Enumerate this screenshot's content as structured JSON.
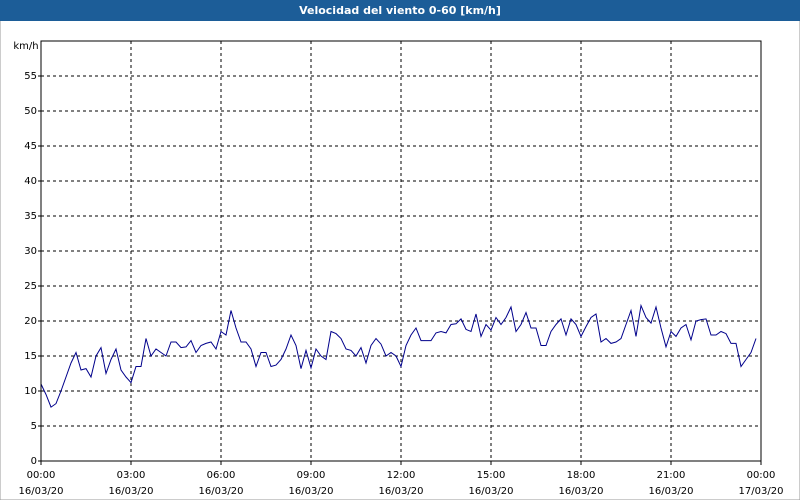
{
  "chart_data": {
    "type": "line",
    "title": "Velocidad del viento 0-60 [km/h]",
    "y_label": "km/h",
    "x": [
      0,
      10,
      20,
      30,
      40,
      50,
      60,
      70,
      80,
      90,
      100,
      110,
      120,
      130,
      140,
      150,
      160,
      170,
      180,
      190,
      200,
      210,
      220,
      230,
      240,
      250,
      260,
      270,
      280,
      290,
      300,
      310,
      320,
      330,
      340,
      350,
      360,
      370,
      380,
      390,
      400,
      410,
      420,
      430,
      440,
      450,
      460,
      470,
      480,
      490,
      500,
      510,
      520,
      530,
      540,
      550,
      560,
      570,
      580,
      590,
      600,
      610,
      620,
      630,
      640,
      650,
      660,
      670,
      680,
      690,
      700,
      710,
      720,
      730,
      740,
      750,
      760,
      770,
      780,
      790,
      800,
      810,
      820,
      830,
      840,
      850,
      860,
      870,
      880,
      890,
      900,
      910,
      920,
      930,
      940,
      950,
      960,
      970,
      980,
      990,
      1000,
      1010,
      1020,
      1030,
      1040,
      1050,
      1060,
      1070,
      1080,
      1090,
      1100,
      1110,
      1120,
      1130,
      1140,
      1150,
      1160,
      1170,
      1180,
      1190,
      1200,
      1210,
      1220,
      1230,
      1240,
      1250,
      1260,
      1270,
      1280,
      1290,
      1300,
      1310,
      1320,
      1330,
      1340,
      1350,
      1360,
      1370,
      1380,
      1390,
      1400,
      1410,
      1420,
      1430
    ],
    "values": [
      11,
      9.5,
      7.7,
      8.2,
      10,
      12,
      14,
      15.5,
      13,
      13.2,
      12,
      15,
      16.2,
      12.5,
      14.5,
      16,
      13,
      12,
      11.2,
      13.5,
      13.5,
      17.5,
      15,
      16,
      15.5,
      15,
      17,
      17,
      16.2,
      16.3,
      17.2,
      15.5,
      16.5,
      16.8,
      17,
      16,
      18.5,
      18,
      21.5,
      19,
      17,
      17,
      16,
      13.5,
      15.5,
      15.5,
      13.5,
      13.7,
      14.5,
      16,
      18,
      16.5,
      13.2,
      15.8,
      13.3,
      16,
      15,
      14.5,
      18.5,
      18.2,
      17.5,
      16,
      15.8,
      15,
      16.2,
      14,
      16.5,
      17.5,
      16.7,
      15,
      15.5,
      15,
      13.5,
      16.5,
      18,
      19,
      17.2,
      17.2,
      17.2,
      18.3,
      18.5,
      18.3,
      19.5,
      19.6,
      20.3,
      18.8,
      18.5,
      21,
      17.8,
      19.5,
      18.7,
      20.5,
      19.5,
      20.5,
      22,
      18.5,
      19.5,
      21.2,
      19,
      19,
      16.5,
      16.5,
      18.5,
      19.5,
      20.3,
      18,
      20.3,
      19.5,
      17.8,
      19.2,
      20.5,
      21,
      17,
      17.5,
      16.8,
      17,
      17.5,
      19.5,
      21.5,
      17.8,
      22.2,
      20.5,
      19.7,
      22,
      19,
      16.3,
      18.5,
      17.8,
      19,
      19.5,
      17.3,
      20,
      20.2,
      20.3,
      18,
      18,
      18.5,
      18.2,
      16.8,
      16.8,
      13.5,
      14.5,
      15.5,
      17.5
    ],
    "color": "#00008b",
    "xlim": [
      0,
      1440
    ],
    "xticks": [
      {
        "value": 0,
        "label": "00:00"
      },
      {
        "value": 180,
        "label": "03:00"
      },
      {
        "value": 360,
        "label": "06:00"
      },
      {
        "value": 540,
        "label": "09:00"
      },
      {
        "value": 720,
        "label": "12:00"
      },
      {
        "value": 900,
        "label": "15:00"
      },
      {
        "value": 1080,
        "label": "18:00"
      },
      {
        "value": 1260,
        "label": "21:00"
      },
      {
        "value": 1440,
        "label": "00:00"
      }
    ],
    "xtick_dates": [
      "16/03/20",
      "16/03/20",
      "16/03/20",
      "16/03/20",
      "16/03/20",
      "16/03/20",
      "16/03/20",
      "16/03/20",
      "17/03/20"
    ],
    "ylim": [
      0,
      60
    ],
    "yticks": [
      0,
      5,
      10,
      15,
      20,
      25,
      30,
      35,
      40,
      45,
      50,
      55
    ],
    "grid": true
  }
}
